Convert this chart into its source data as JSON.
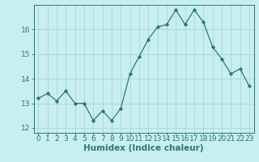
{
  "x": [
    0,
    1,
    2,
    3,
    4,
    5,
    6,
    7,
    8,
    9,
    10,
    11,
    12,
    13,
    14,
    15,
    16,
    17,
    18,
    19,
    20,
    21,
    22,
    23
  ],
  "y": [
    13.2,
    13.4,
    13.1,
    13.5,
    13.0,
    13.0,
    12.3,
    12.7,
    12.3,
    12.8,
    14.2,
    14.9,
    15.6,
    16.1,
    16.2,
    16.8,
    16.2,
    16.8,
    16.3,
    15.3,
    14.8,
    14.2,
    14.4,
    13.7
  ],
  "line_color": "#2a7a6e",
  "marker_color": "#2a7a6e",
  "bg_color": "#c8eef0",
  "grid_color": "#aad4d8",
  "xlabel": "Humidex (Indice chaleur)",
  "ylim": [
    11.8,
    17.0
  ],
  "xlim": [
    -0.5,
    23.5
  ],
  "yticks": [
    12,
    13,
    14,
    15,
    16
  ],
  "xticks": [
    0,
    1,
    2,
    3,
    4,
    5,
    6,
    7,
    8,
    9,
    10,
    11,
    12,
    13,
    14,
    15,
    16,
    17,
    18,
    19,
    20,
    21,
    22,
    23
  ],
  "xlabel_fontsize": 7.5,
  "tick_fontsize": 6.5,
  "font_color": "#2a7a6e"
}
